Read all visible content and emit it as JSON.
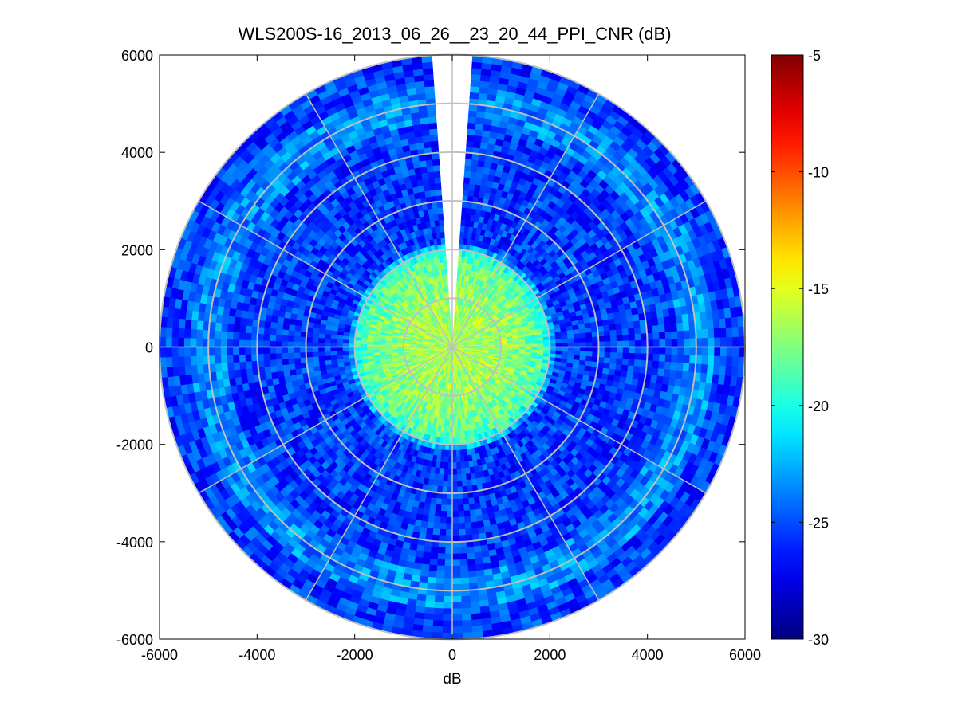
{
  "chart_data": {
    "type": "heatmap",
    "subtype": "polar-ppi",
    "title": "WLS200S-16_2013_06_26__23_20_44_PPI_CNR (dB)",
    "xlabel": "dB",
    "ylabel": "",
    "xlim": [
      -6000,
      6000
    ],
    "ylim": [
      -6000,
      6000
    ],
    "x_ticks": [
      "-6000",
      "-4000",
      "-2000",
      "0",
      "2000",
      "4000",
      "6000"
    ],
    "y_ticks": [
      "6000",
      "4000",
      "2000",
      "0",
      "-2000",
      "-4000",
      "-6000"
    ],
    "polar_grid": {
      "range_rings": [
        1000,
        2000,
        3000,
        4000,
        5000,
        6000
      ],
      "spoke_step_deg": 30,
      "grid_color": "#c0c0c0"
    },
    "scan": {
      "max_range": 6000,
      "missing_sector_deg": [
        -4,
        4
      ]
    },
    "field": {
      "near_range_value": -16.5,
      "near_range_edge": 1900,
      "far_range_value": -25.5,
      "noise_amplitude": 2.0,
      "annulus_bright_range": [
        4600,
        5400
      ],
      "annulus_bright_value": -23.5
    },
    "colorbar": {
      "colormap": "jet",
      "min": -30,
      "max": -5,
      "ticks": [
        "-5",
        "-10",
        "-15",
        "-20",
        "-25",
        "-30"
      ]
    }
  }
}
